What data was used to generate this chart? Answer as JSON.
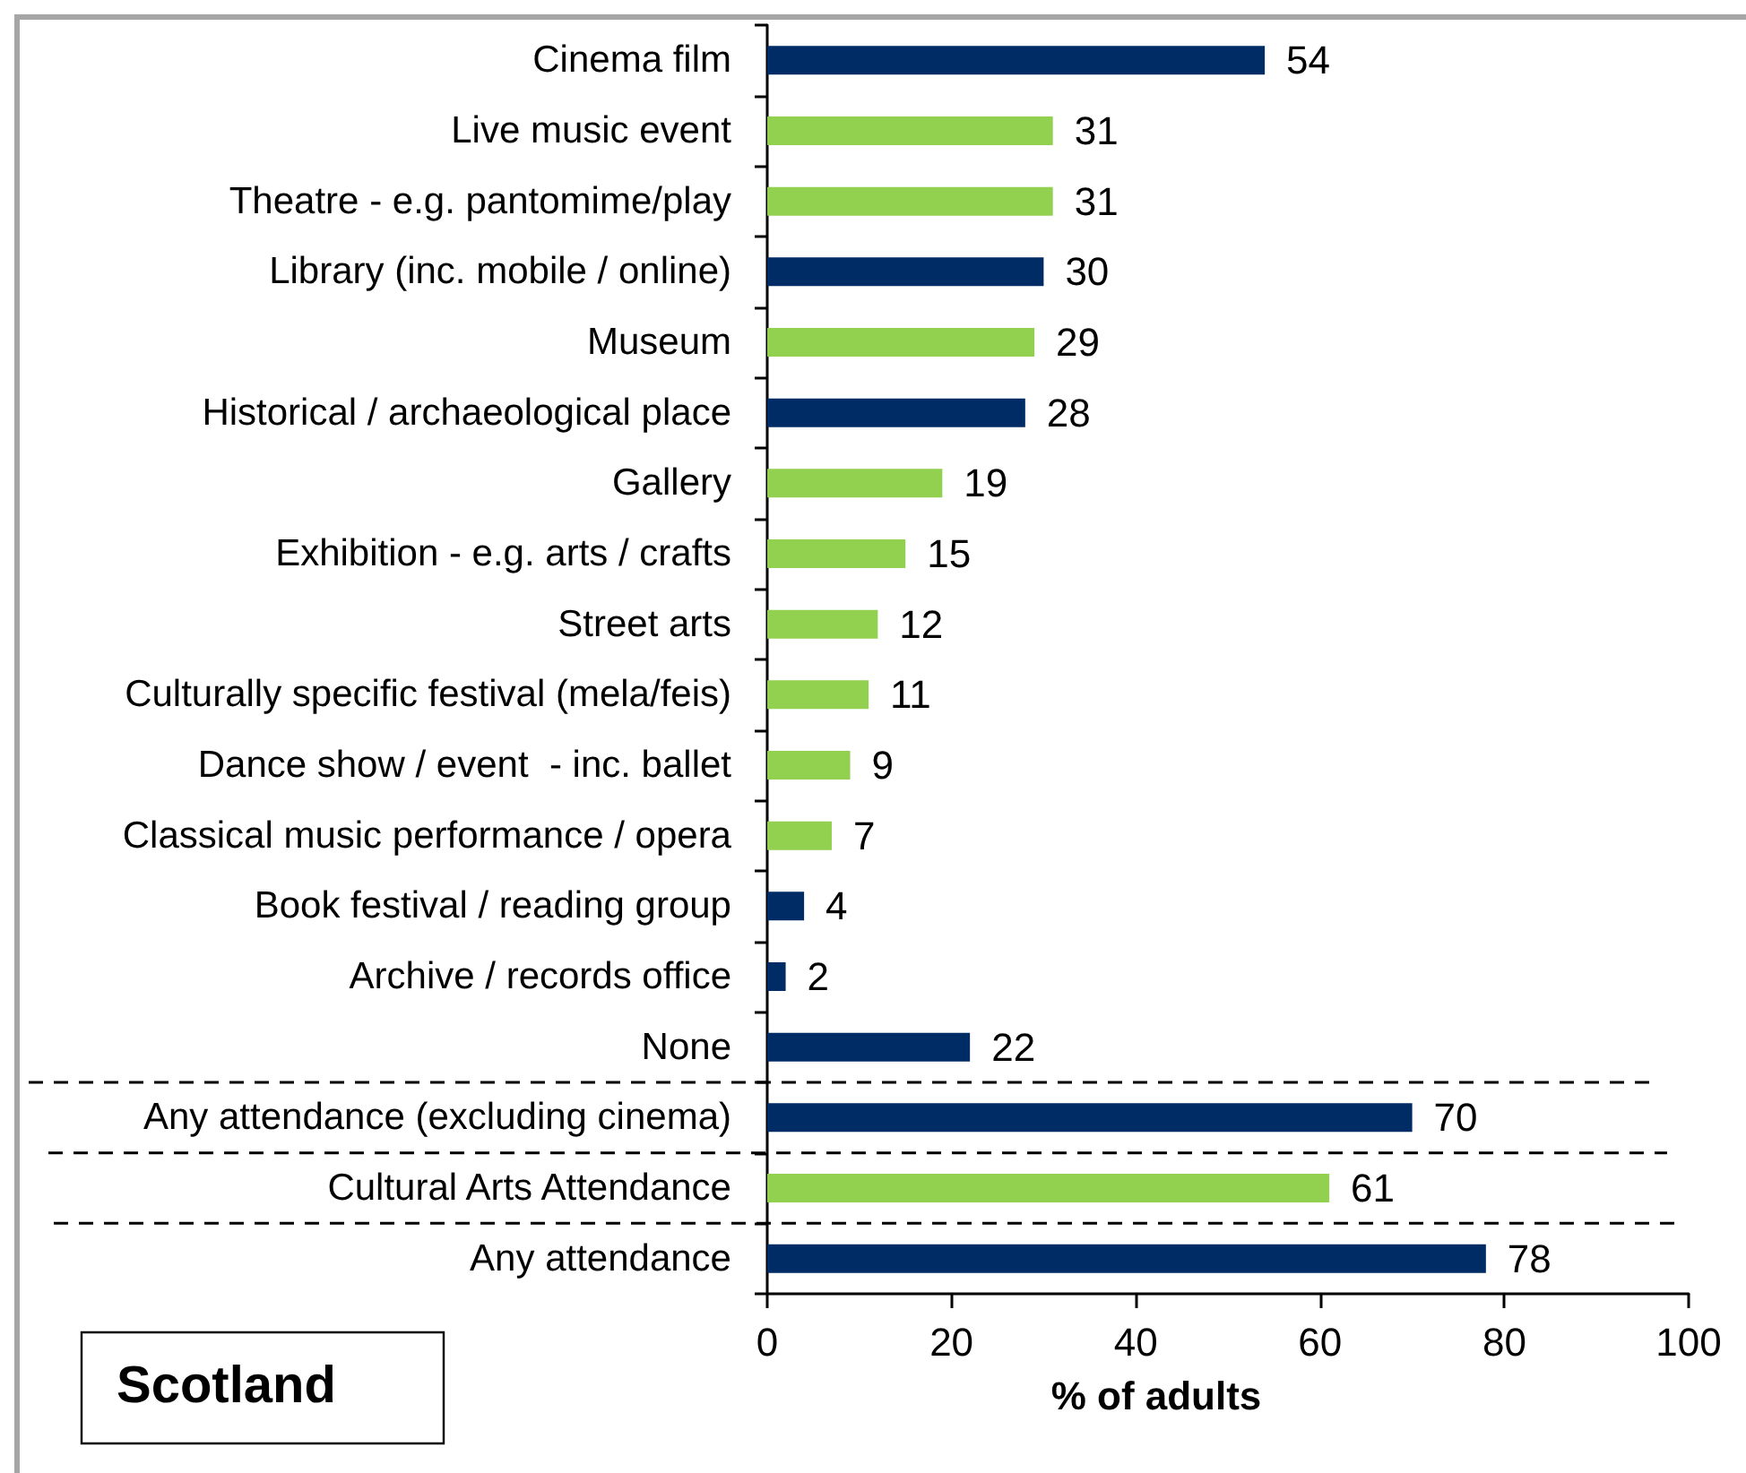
{
  "chart_data": {
    "type": "bar",
    "orientation": "horizontal",
    "categories": [
      "Cinema film",
      "Live music event",
      "Theatre - e.g. pantomime/play",
      "Library (inc. mobile / online)",
      "Museum",
      "Historical / archaeological place",
      "Gallery",
      "Exhibition - e.g. arts / crafts",
      "Street arts",
      "Culturally specific festival (mela/feis)",
      "Dance show / event  - inc. ballet",
      "Classical music performance / opera",
      "Book festival / reading group",
      "Archive / records office",
      "None",
      "Any attendance (excluding cinema)",
      "Cultural Arts Attendance",
      "Any attendance"
    ],
    "values": [
      54,
      31,
      31,
      30,
      29,
      28,
      19,
      15,
      12,
      11,
      9,
      7,
      4,
      2,
      22,
      70,
      61,
      78
    ],
    "colors": [
      "#002c66",
      "#92d050",
      "#92d050",
      "#002c66",
      "#92d050",
      "#002c66",
      "#92d050",
      "#92d050",
      "#92d050",
      "#92d050",
      "#92d050",
      "#92d050",
      "#002c66",
      "#002c66",
      "#002c66",
      "#002c66",
      "#92d050",
      "#002c66"
    ],
    "xlabel": "% of adults",
    "xlim": [
      0,
      100
    ],
    "xticks": [
      0,
      20,
      40,
      60,
      80,
      100
    ],
    "data_labels": true,
    "grid": false,
    "annotations": [
      "Scotland"
    ]
  }
}
